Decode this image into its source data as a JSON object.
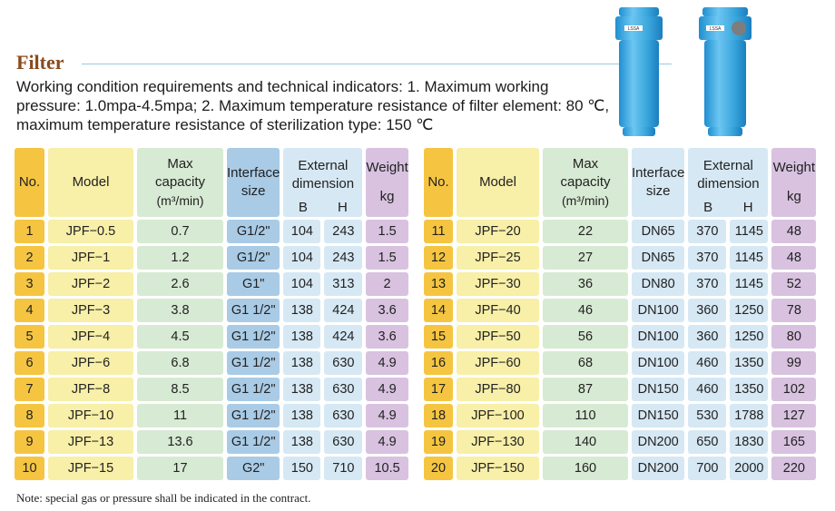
{
  "title": "Filter",
  "description": "Working condition requirements and technical indicators: 1. Maximum working pressure: 1.0mpa-4.5mpa; 2. Maximum temperature resistance of filter element: 80 ℃, maximum temperature resistance of sterilization type: 150 ℃",
  "product_labels": [
    "LSSA",
    "LSSA"
  ],
  "headers": {
    "no": "No.",
    "model": "Model",
    "capacity_line1": "Max",
    "capacity_line2": "capacity",
    "capacity_unit": "(m³/min)",
    "interface_line1": "Interface",
    "interface_line2": "size",
    "external_line1": "External",
    "external_line2": "dimension",
    "b": "B",
    "h": "H",
    "weight": "Weight",
    "weight_unit": "kg"
  },
  "left_rows": [
    {
      "no": "1",
      "model": "JPF−0.5",
      "capacity": "0.7",
      "interface": "G1/2\"",
      "b": "104",
      "h": "243",
      "weight": "1.5"
    },
    {
      "no": "2",
      "model": "JPF−1",
      "capacity": "1.2",
      "interface": "G1/2\"",
      "b": "104",
      "h": "243",
      "weight": "1.5"
    },
    {
      "no": "3",
      "model": "JPF−2",
      "capacity": "2.6",
      "interface": "G1\"",
      "b": "104",
      "h": "313",
      "weight": "2"
    },
    {
      "no": "4",
      "model": "JPF−3",
      "capacity": "3.8",
      "interface": "G1 1/2\"",
      "b": "138",
      "h": "424",
      "weight": "3.6"
    },
    {
      "no": "5",
      "model": "JPF−4",
      "capacity": "4.5",
      "interface": "G1 1/2\"",
      "b": "138",
      "h": "424",
      "weight": "3.6"
    },
    {
      "no": "6",
      "model": "JPF−6",
      "capacity": "6.8",
      "interface": "G1 1/2\"",
      "b": "138",
      "h": "630",
      "weight": "4.9"
    },
    {
      "no": "7",
      "model": "JPF−8",
      "capacity": "8.5",
      "interface": "G1 1/2\"",
      "b": "138",
      "h": "630",
      "weight": "4.9"
    },
    {
      "no": "8",
      "model": "JPF−10",
      "capacity": "11",
      "interface": "G1 1/2\"",
      "b": "138",
      "h": "630",
      "weight": "4.9"
    },
    {
      "no": "9",
      "model": "JPF−13",
      "capacity": "13.6",
      "interface": "G1 1/2\"",
      "b": "138",
      "h": "630",
      "weight": "4.9"
    },
    {
      "no": "10",
      "model": "JPF−15",
      "capacity": "17",
      "interface": "G2\"",
      "b": "150",
      "h": "710",
      "weight": "10.5"
    }
  ],
  "right_rows": [
    {
      "no": "11",
      "model": "JPF−20",
      "capacity": "22",
      "interface": "DN65",
      "b": "370",
      "h": "1145",
      "weight": "48"
    },
    {
      "no": "12",
      "model": "JPF−25",
      "capacity": "27",
      "interface": "DN65",
      "b": "370",
      "h": "1145",
      "weight": "48"
    },
    {
      "no": "13",
      "model": "JPF−30",
      "capacity": "36",
      "interface": "DN80",
      "b": "370",
      "h": "1145",
      "weight": "52"
    },
    {
      "no": "14",
      "model": "JPF−40",
      "capacity": "46",
      "interface": "DN100",
      "b": "360",
      "h": "1250",
      "weight": "78"
    },
    {
      "no": "15",
      "model": "JPF−50",
      "capacity": "56",
      "interface": "DN100",
      "b": "360",
      "h": "1250",
      "weight": "80"
    },
    {
      "no": "16",
      "model": "JPF−60",
      "capacity": "68",
      "interface": "DN100",
      "b": "460",
      "h": "1350",
      "weight": "99"
    },
    {
      "no": "17",
      "model": "JPF−80",
      "capacity": "87",
      "interface": "DN150",
      "b": "460",
      "h": "1350",
      "weight": "102"
    },
    {
      "no": "18",
      "model": "JPF−100",
      "capacity": "110",
      "interface": "DN150",
      "b": "530",
      "h": "1788",
      "weight": "127"
    },
    {
      "no": "19",
      "model": "JPF−130",
      "capacity": "140",
      "interface": "DN200",
      "b": "650",
      "h": "1830",
      "weight": "165"
    },
    {
      "no": "20",
      "model": "JPF−150",
      "capacity": "160",
      "interface": "DN200",
      "b": "700",
      "h": "2000",
      "weight": "220"
    }
  ],
  "note": "Note: special gas or pressure shall be indicated in the contract.",
  "colors": {
    "no": "#f5c542",
    "model": "#f8efa8",
    "capacity": "#d7ead3",
    "interface": "#a9cbe6",
    "external": "#d6e8f4",
    "weight": "#d8c2e0",
    "title": "#8a4b1d",
    "product": "#3aa6dc"
  }
}
